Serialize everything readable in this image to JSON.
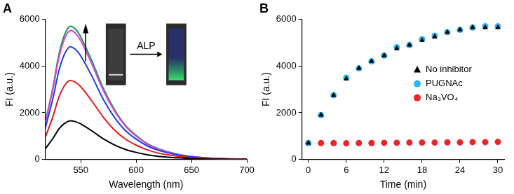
{
  "chart_data": [
    {
      "type": "line",
      "title": "A",
      "x": [
        518,
        525,
        530,
        535,
        540,
        545,
        550,
        560,
        570,
        580,
        590,
        600,
        610,
        620,
        630,
        640,
        650,
        660,
        670,
        680,
        690,
        700
      ],
      "series": [
        {
          "color": "#000000",
          "values": [
            460,
            910,
            1290,
            1530,
            1650,
            1620,
            1520,
            1220,
            890,
            630,
            430,
            300,
            200,
            130,
            90,
            60,
            40,
            20,
            10,
            10,
            0,
            0
          ]
        },
        {
          "color": "#e41a1c",
          "values": [
            950,
            1860,
            2640,
            3140,
            3380,
            3310,
            3110,
            2500,
            1830,
            1280,
            880,
            610,
            410,
            270,
            190,
            120,
            70,
            50,
            30,
            20,
            10,
            10
          ]
        },
        {
          "color": "#1f3fe0",
          "values": [
            1350,
            2650,
            3760,
            4480,
            4820,
            4720,
            4430,
            3570,
            2600,
            1830,
            1250,
            870,
            580,
            390,
            270,
            170,
            110,
            70,
            40,
            20,
            10,
            10
          ]
        },
        {
          "color": "#e040e0",
          "values": [
            1550,
            3040,
            4310,
            5130,
            5520,
            5410,
            5080,
            4080,
            2980,
            2100,
            1440,
            990,
            660,
            440,
            300,
            190,
            120,
            80,
            40,
            30,
            20,
            10
          ]
        },
        {
          "color": "#1a9a3a",
          "values": [
            1600,
            3140,
            4450,
            5300,
            5700,
            5590,
            5240,
            4220,
            3080,
            2170,
            1480,
            1030,
            680,
            460,
            310,
            200,
            130,
            80,
            50,
            30,
            20,
            10
          ]
        }
      ],
      "xlabel": "Wavelength (nm)",
      "ylabel": "FI (a.u.)",
      "xlim": [
        518,
        700
      ],
      "xticks": [
        550,
        600,
        650,
        700
      ],
      "ylim": [
        0,
        6000
      ],
      "yticks": [
        0,
        2000,
        4000,
        6000
      ],
      "grid": false,
      "annotations": [
        "ALP"
      ]
    },
    {
      "type": "scatter",
      "title": "B",
      "x": [
        0,
        2,
        4,
        6,
        8,
        10,
        12,
        14,
        16,
        18,
        20,
        22,
        24,
        26,
        28,
        30
      ],
      "series": [
        {
          "name": "No inhibitor",
          "color": "#000000",
          "marker": "triangle",
          "values": [
            700,
            1900,
            2750,
            3450,
            3900,
            4200,
            4450,
            4750,
            4900,
            5100,
            5250,
            5450,
            5550,
            5650,
            5650,
            5650
          ]
        },
        {
          "name": "PUGNAc",
          "color": "#29b6f6",
          "marker": "circle",
          "values": [
            700,
            1900,
            2750,
            3500,
            3900,
            4200,
            4450,
            4800,
            4900,
            5150,
            5300,
            5450,
            5550,
            5650,
            5700,
            5700
          ]
        },
        {
          "name": "Na₃VO₄",
          "color": "#e8262a",
          "marker": "circle",
          "values": [
            700,
            700,
            700,
            690,
            700,
            700,
            710,
            710,
            720,
            720,
            720,
            730,
            730,
            740,
            740,
            750
          ]
        }
      ],
      "xlabel": "Time (min)",
      "ylabel": "FI (a.u.)",
      "xlim": [
        -1,
        31
      ],
      "xticks": [
        0,
        6,
        12,
        18,
        24,
        30
      ],
      "ylim": [
        0,
        6000
      ],
      "yticks": [
        0,
        2000,
        4000,
        6000
      ],
      "grid": false,
      "legend": "right"
    }
  ]
}
